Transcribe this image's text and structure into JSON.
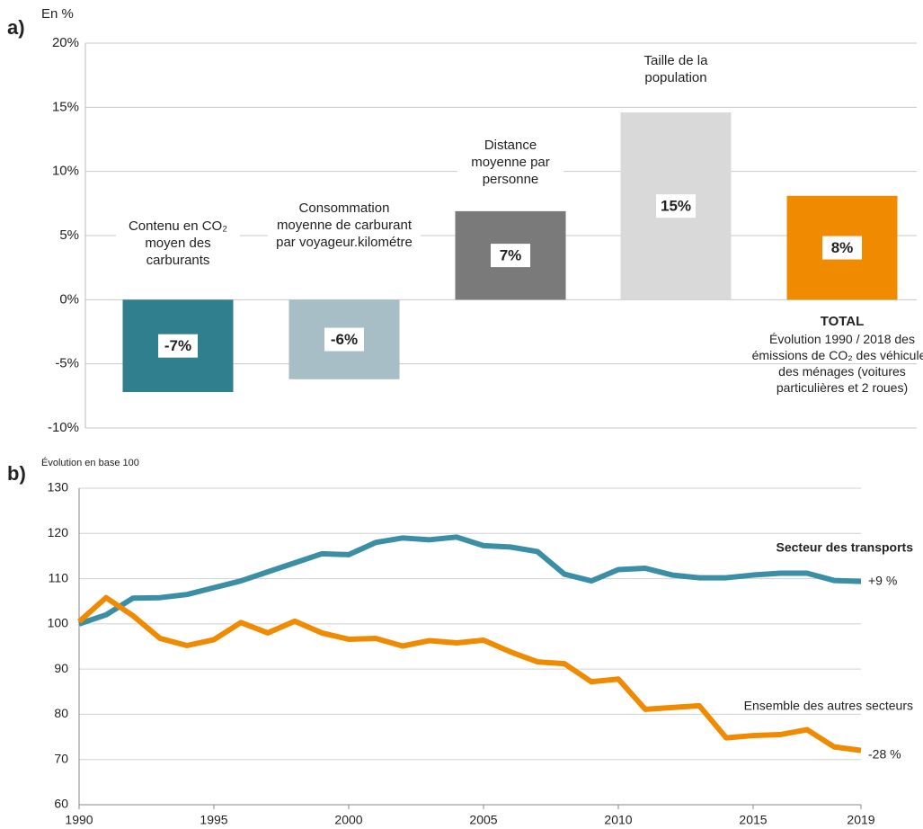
{
  "chart_data": [
    {
      "type": "bar",
      "panel_label": "a)",
      "y_axis_label": "En %",
      "categories": [
        "Contenu en CO₂ moyen des carburants",
        "Consommation moyenne de carburant par voyageur.kilométre",
        "Distance moyenne par personne",
        "Taille de la population",
        "TOTAL"
      ],
      "values": [
        -7.2,
        -6.2,
        6.9,
        14.6,
        8.1
      ],
      "value_labels": [
        "-7%",
        "-6%",
        "7%",
        "15%",
        "8%"
      ],
      "colors": [
        "#2f7f8f",
        "#a7bec6",
        "#7a7a7a",
        "#d9d9d9",
        "#f08a00"
      ],
      "annotation": "Évolution 1990 / 2018 des émissions de CO₂ des véhicules des ménages (voitures particulières et 2 roues)",
      "ylim": [
        -10,
        20
      ],
      "yticks": [
        {
          "value": -10,
          "label": "-10%"
        },
        {
          "value": -5,
          "label": "-5%"
        },
        {
          "value": 0,
          "label": "0%"
        },
        {
          "value": 5,
          "label": "5%"
        },
        {
          "value": 10,
          "label": "10%"
        },
        {
          "value": 15,
          "label": "15%"
        },
        {
          "value": 20,
          "label": "20%"
        }
      ],
      "grid": true
    },
    {
      "type": "line",
      "panel_label": "b)",
      "y_axis_label": "Évolution en base 100",
      "x": [
        1990,
        1991,
        1992,
        1993,
        1994,
        1995,
        1996,
        1997,
        1998,
        1999,
        2000,
        2001,
        2002,
        2003,
        2004,
        2005,
        2006,
        2007,
        2008,
        2009,
        2010,
        2011,
        2012,
        2013,
        2014,
        2015,
        2016,
        2017,
        2018,
        2019
      ],
      "xlim": [
        1990,
        2019
      ],
      "xticks": [
        1990,
        1995,
        2000,
        2005,
        2010,
        2015,
        2019
      ],
      "ylim": [
        60,
        130
      ],
      "yticks": [
        60,
        70,
        80,
        90,
        100,
        110,
        120,
        130
      ],
      "grid": true,
      "series": [
        {
          "name": "Secteur des transports",
          "color": "#3a8ea5",
          "end_label": "+9 %",
          "values": [
            100,
            102,
            105.7,
            105.8,
            106.5,
            108,
            109.5,
            111.5,
            113.5,
            115.5,
            115.3,
            118,
            119,
            118.6,
            119.2,
            117.3,
            117,
            116,
            111,
            109.5,
            112,
            112.3,
            110.8,
            110.2,
            110.2,
            110.8,
            111.2,
            111.2,
            109.6,
            109.4
          ]
        },
        {
          "name": "Ensemble des autres secteurs",
          "color": "#f08a00",
          "end_label": "-28 %",
          "values": [
            100.5,
            105.8,
            101.8,
            96.8,
            95.2,
            96.5,
            100.3,
            98,
            100.6,
            98,
            96.6,
            96.8,
            95.1,
            96.3,
            95.8,
            96.4,
            93.8,
            91.6,
            91.2,
            87.2,
            87.8,
            81.1,
            81.5,
            81.9,
            74.8,
            75.3,
            75.5,
            76.6,
            72.8,
            72
          ]
        }
      ]
    }
  ]
}
